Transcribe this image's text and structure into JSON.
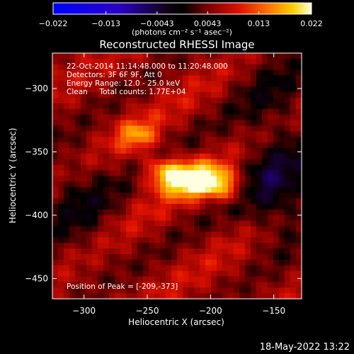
{
  "chart_data": {
    "type": "heatmap",
    "title": "Reconstructed RHESSI Image",
    "xlabel": "Heliocentric X (arcsec)",
    "ylabel": "Heliocentric Y (arcsec)",
    "xlim": [
      -325,
      -128
    ],
    "ylim": [
      -466,
      -272
    ],
    "xticks": [
      -300,
      -250,
      -200,
      -150
    ],
    "xtick_labels": [
      "−300",
      "−250",
      "−200",
      "−150"
    ],
    "yticks": [
      -300,
      -350,
      -400,
      -450
    ],
    "ytick_labels": [
      "−300",
      "−350",
      "−400",
      "−450"
    ],
    "colorbar": {
      "range": [
        -0.022,
        0.022
      ],
      "ticks": [
        -0.022,
        -0.013,
        -0.0043,
        0.0043,
        0.013,
        0.022
      ],
      "tick_labels": [
        "−0.022",
        "−0.013",
        "−0.0043",
        "0.0043",
        "0.013",
        "0.022"
      ],
      "unit_label": "(photons cm⁻² s⁻¹ asec⁻²)"
    },
    "annotations": [
      "22-Oct-2014 11:14:48.000 to 11:20:48.000",
      "Detectors: 3F 6F 9F, Att 0",
      "Energy Range: 12.0 - 25.0 keV",
      "Clean     Total counts: 1.77E+04"
    ],
    "peak_label": "Position of Peak = [-209,-373]",
    "peak": {
      "x": -209,
      "y": -373,
      "value": 0.022
    },
    "sources": [
      {
        "x": -212,
        "y": -372,
        "amp": 0.02
      },
      {
        "x": -237,
        "y": -365,
        "amp": 0.0095
      },
      {
        "x": -258,
        "y": -337,
        "amp": 0.0085
      },
      {
        "x": -186,
        "y": -380,
        "amp": 0.007
      }
    ],
    "negative_regions": [
      {
        "x": -148,
        "y": -378,
        "amp": -0.008
      },
      {
        "x": -305,
        "y": -390,
        "amp": -0.005
      },
      {
        "x": -150,
        "y": -300,
        "amp": -0.004
      }
    ],
    "grid": false
  },
  "footer": {
    "date": "18-May-2022 13:22"
  }
}
